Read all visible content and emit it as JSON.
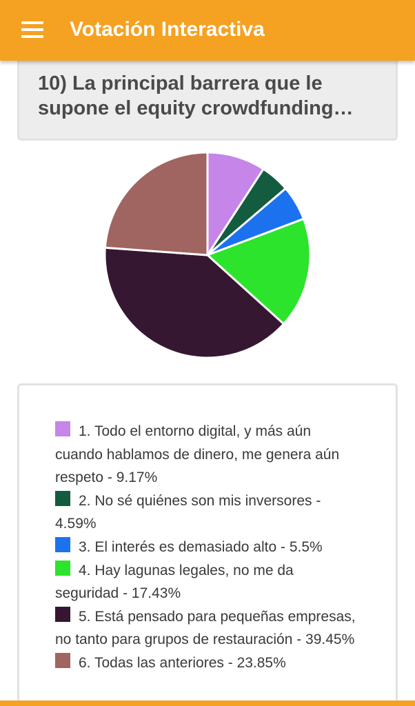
{
  "app_bar": {
    "title": "Votación Interactiva",
    "menu_icon": "hamburger-menu-icon",
    "color": "#f5a122"
  },
  "question": {
    "text": "10) La principal barrera que le\nsupone el equity crowdfunding…"
  },
  "chart_data": {
    "type": "pie",
    "slices": [
      {
        "label": "1. Todo el entorno digital, y más aún cuando hablamos de dinero, me genera aún respeto",
        "value": 9.17,
        "color": "#c585e9"
      },
      {
        "label": "2. No sé quiénes son mis inversores",
        "value": 4.59,
        "color": "#135c3f"
      },
      {
        "label": "3. El interés es demasiado alto",
        "value": 5.5,
        "color": "#1c72ee"
      },
      {
        "label": "4. Hay lagunas legales, no me da seguridad",
        "value": 17.43,
        "color": "#2be42b"
      },
      {
        "label": "5. Está pensado para pequeñas empresas, no tanto para grupos de restauración",
        "value": 39.45,
        "color": "#361731"
      },
      {
        "label": "6. Todas las anteriores",
        "value": 23.85,
        "color": "#a06461"
      }
    ]
  },
  "legend": {
    "items": [
      {
        "text": "1. Todo el entorno digital, y más aún cuando hablamos de dinero, me genera aún respeto - 9.17%",
        "color": "#c585e9"
      },
      {
        "text": "2. No sé quiénes son mis inversores - 4.59%",
        "color": "#135c3f"
      },
      {
        "text": "3. El interés es demasiado alto - 5.5%",
        "color": "#1c72ee"
      },
      {
        "text": "4. Hay lagunas legales, no me da seguridad - 17.43%",
        "color": "#2be42b"
      },
      {
        "text": "5. Está pensado para pequeñas empresas, no tanto para grupos de restauración - 39.45%",
        "color": "#361731"
      },
      {
        "text": "6. Todas las anteriores - 23.85%",
        "color": "#a06461"
      }
    ]
  }
}
